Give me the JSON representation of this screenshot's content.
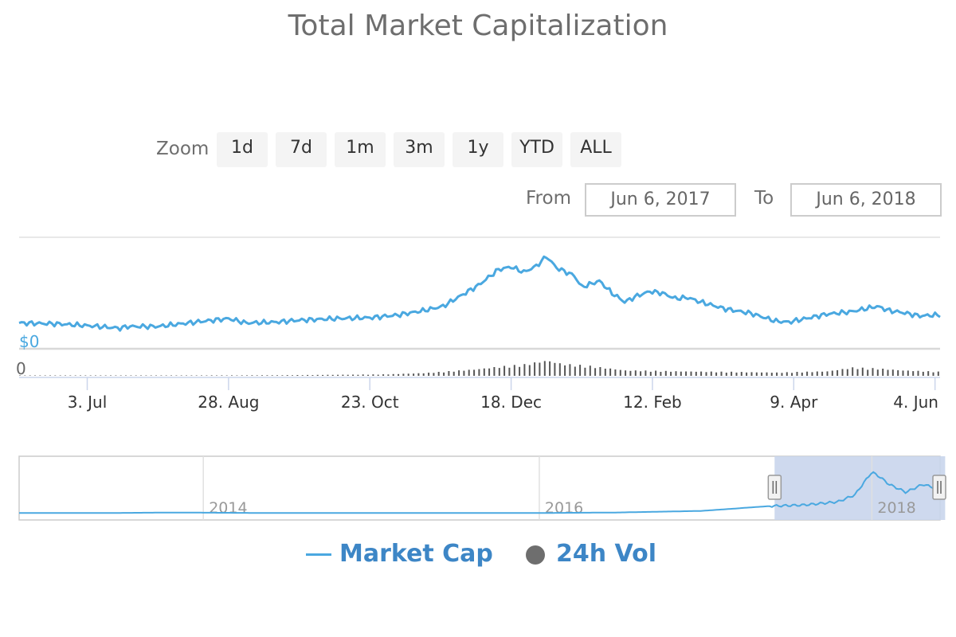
{
  "title": "Total Market Capitalization",
  "range_selector": {
    "zoom_label": "Zoom",
    "buttons": [
      "1d",
      "7d",
      "1m",
      "3m",
      "1y",
      "YTD",
      "ALL"
    ],
    "from_label": "From",
    "from_value": "Jun 6, 2017",
    "to_label": "To",
    "to_value": "Jun 6, 2018"
  },
  "legend": {
    "market_cap": "Market Cap",
    "volume": "24h Vol"
  },
  "colors": {
    "line": "#4aa8e0",
    "volume": "#555555",
    "navigator_mask": "#c9d5ec",
    "legend_text": "#3d86c6"
  },
  "chart_data": {
    "type": "line",
    "title": "Total Market Capitalization",
    "x_range": [
      "Jun 6, 2017",
      "Jun 6, 2018"
    ],
    "x_tick_labels": [
      "3. Jul",
      "28. Aug",
      "23. Oct",
      "18. Dec",
      "12. Feb",
      "9. Apr",
      "4. Jun"
    ],
    "x_tick_days": [
      27,
      83,
      139,
      195,
      251,
      307,
      363
    ],
    "y_axis_label_main": "$0",
    "y_axis_label_volume": "0",
    "series": [
      {
        "name": "Market Cap",
        "x_days": [
          0,
          15,
          27,
          40,
          43,
          55,
          70,
          83,
          90,
          102,
          110,
          125,
          139,
          150,
          160,
          168,
          175,
          182,
          190,
          195,
          200,
          205,
          209,
          213,
          220,
          223,
          230,
          235,
          240,
          245,
          250,
          255,
          260,
          265,
          270,
          280,
          290,
          300,
          305,
          310,
          320,
          330,
          335,
          340,
          345,
          350,
          357,
          363,
          365
        ],
        "values": [
          0.24,
          0.23,
          0.21,
          0.18,
          0.2,
          0.2,
          0.25,
          0.29,
          0.24,
          0.25,
          0.27,
          0.29,
          0.3,
          0.33,
          0.38,
          0.43,
          0.55,
          0.67,
          0.85,
          0.88,
          0.82,
          0.89,
          1.0,
          0.87,
          0.78,
          0.65,
          0.72,
          0.58,
          0.48,
          0.55,
          0.6,
          0.58,
          0.52,
          0.53,
          0.48,
          0.4,
          0.35,
          0.26,
          0.25,
          0.28,
          0.34,
          0.37,
          0.4,
          0.43,
          0.38,
          0.36,
          0.32,
          0.33,
          0.33
        ]
      },
      {
        "name": "24h Vol",
        "x_days": [
          0,
          60,
          100,
          145,
          160,
          170,
          180,
          190,
          200,
          209,
          215,
          225,
          240,
          260,
          280,
          300,
          320,
          330,
          340,
          350,
          365
        ],
        "values": [
          0.0,
          0.02,
          0.03,
          0.08,
          0.15,
          0.25,
          0.35,
          0.5,
          0.62,
          0.85,
          0.65,
          0.55,
          0.3,
          0.25,
          0.22,
          0.18,
          0.25,
          0.45,
          0.4,
          0.3,
          0.22
        ]
      }
    ]
  },
  "navigator": {
    "year_labels": [
      "2014",
      "2016",
      "2018"
    ],
    "x_years": [
      2013.0,
      2013.5,
      2013.9,
      2014.5,
      2015.0,
      2015.5,
      2016.0,
      2016.5,
      2017.0,
      2017.4,
      2017.6,
      2017.8,
      2017.9,
      2018.0,
      2018.05,
      2018.1,
      2018.2,
      2018.3,
      2018.4
    ],
    "values": [
      0.01,
      0.01,
      0.02,
      0.01,
      0.01,
      0.01,
      0.01,
      0.02,
      0.05,
      0.14,
      0.16,
      0.22,
      0.35,
      0.78,
      0.68,
      0.55,
      0.4,
      0.55,
      0.45
    ],
    "selected_from": 2017.43,
    "selected_to": 2018.43
  }
}
